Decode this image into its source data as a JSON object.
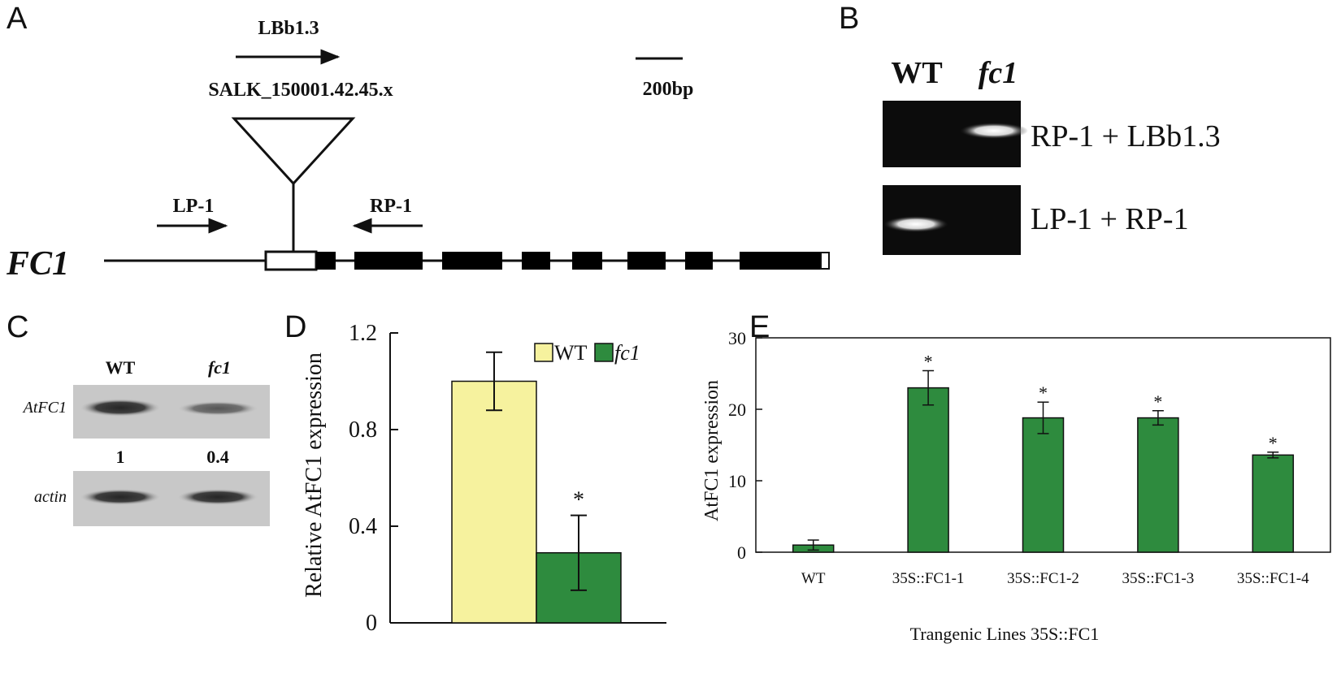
{
  "panels": {
    "a": "A",
    "b": "B",
    "c": "C",
    "d": "D",
    "e": "E"
  },
  "panel_a": {
    "gene_name": "FC1",
    "tdna_primer": "LBb1.3",
    "tdna_line": "SALK_150001.42.45.x",
    "scale_label": "200bp",
    "left_primer": "LP-1",
    "right_primer": "RP-1"
  },
  "panel_b": {
    "col_wt": "WT",
    "col_mut": "fc1",
    "row1_label": "RP-1 + LBb1.3",
    "row2_label": "LP-1 + RP-1"
  },
  "panel_c": {
    "col_wt": "WT",
    "col_mut": "fc1",
    "row1_label": "AtFC1",
    "row2_label": "actin",
    "ratio_wt": "1",
    "ratio_mut": "0.4"
  },
  "chart_data": [
    {
      "type": "bar",
      "categories": [
        "WT",
        "fc1"
      ],
      "values": [
        1.0,
        0.29
      ],
      "errors": [
        0.12,
        0.155
      ],
      "colors": [
        "#f6f29e",
        "#2e8b3e"
      ],
      "significance": [
        "",
        "*"
      ],
      "ylabel": "Relative AtFC1 expression",
      "xlabel": "",
      "ylim": [
        0,
        1.2
      ],
      "yticks": [
        "0",
        "0.4",
        "0.8",
        "1.2"
      ],
      "legend": [
        "WT",
        "fc1"
      ],
      "legend_position": "top-right"
    },
    {
      "type": "bar",
      "categories": [
        "WT",
        "35S::FC1-1",
        "35S::FC1-2",
        "35S::FC1-3",
        "35S::FC1-4"
      ],
      "values": [
        1.0,
        23.0,
        18.8,
        18.8,
        13.6
      ],
      "errors": [
        0.7,
        2.4,
        2.2,
        1.0,
        0.4
      ],
      "color": "#2e8b3e",
      "significance": [
        "",
        "*",
        "*",
        "*",
        "*"
      ],
      "ylabel": "AtFC1 expression",
      "xlabel": "Trangenic Lines 35S::FC1",
      "ylim": [
        0,
        30
      ],
      "yticks": [
        "0",
        "10",
        "20",
        "30"
      ]
    }
  ]
}
